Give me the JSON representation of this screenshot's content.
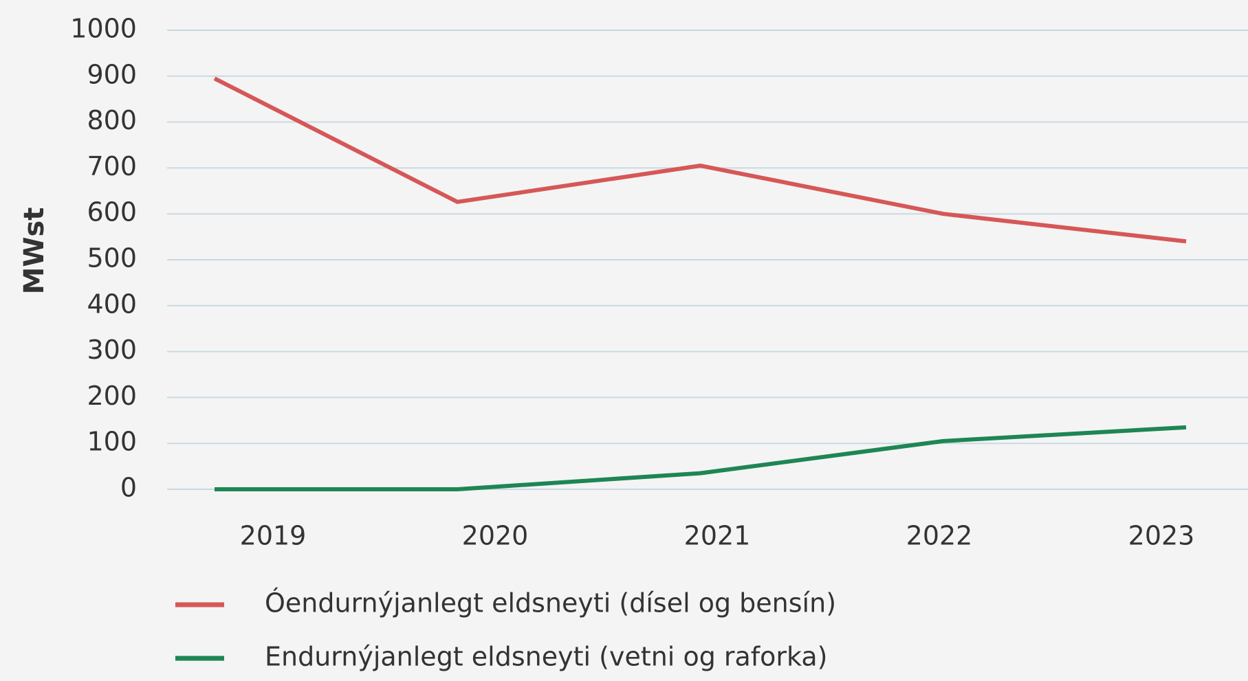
{
  "chart_data": {
    "type": "line",
    "y_label": "MWst",
    "categories": [
      "2019",
      "2020",
      "2021",
      "2022",
      "2023"
    ],
    "series": [
      {
        "name": "Óendurnýjanlegt eldsneyti (dísel og bensín)",
        "color": "#d65757",
        "values": [
          895,
          626,
          705,
          600,
          540
        ]
      },
      {
        "name": "Endurnýjanlegt eldsneyti (vetni og raforka)",
        "color": "#1e8654",
        "values": [
          0,
          0,
          35,
          105,
          135
        ]
      }
    ],
    "ylim": [
      0,
      1000
    ],
    "yticks": [
      0,
      100,
      200,
      300,
      400,
      500,
      600,
      700,
      800,
      900,
      1000
    ],
    "grid": true,
    "legend": "bottom"
  }
}
